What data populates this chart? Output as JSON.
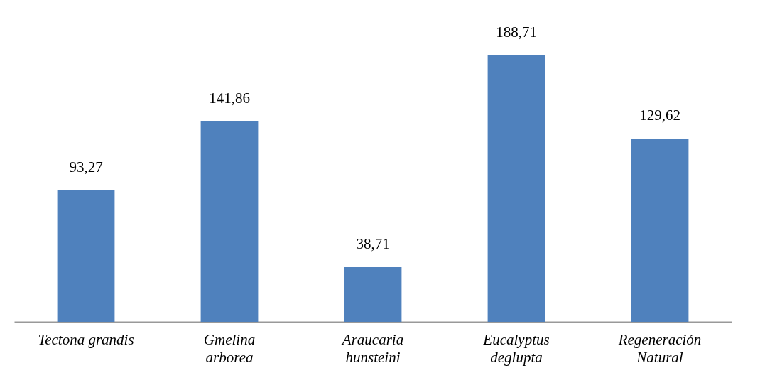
{
  "chart_data": {
    "type": "bar",
    "categories": [
      "Tectona grandis",
      "Gmelina\narborea",
      "Araucaria\nhunsteini",
      "Eucalyptus\ndeglupta",
      "Regeneración\nNatural"
    ],
    "values": [
      93.27,
      141.86,
      38.71,
      188.71,
      129.62
    ],
    "value_labels": [
      "93,27",
      "141,86",
      "38,71",
      "188,71",
      "129,62"
    ],
    "color": "#4f81bd"
  }
}
